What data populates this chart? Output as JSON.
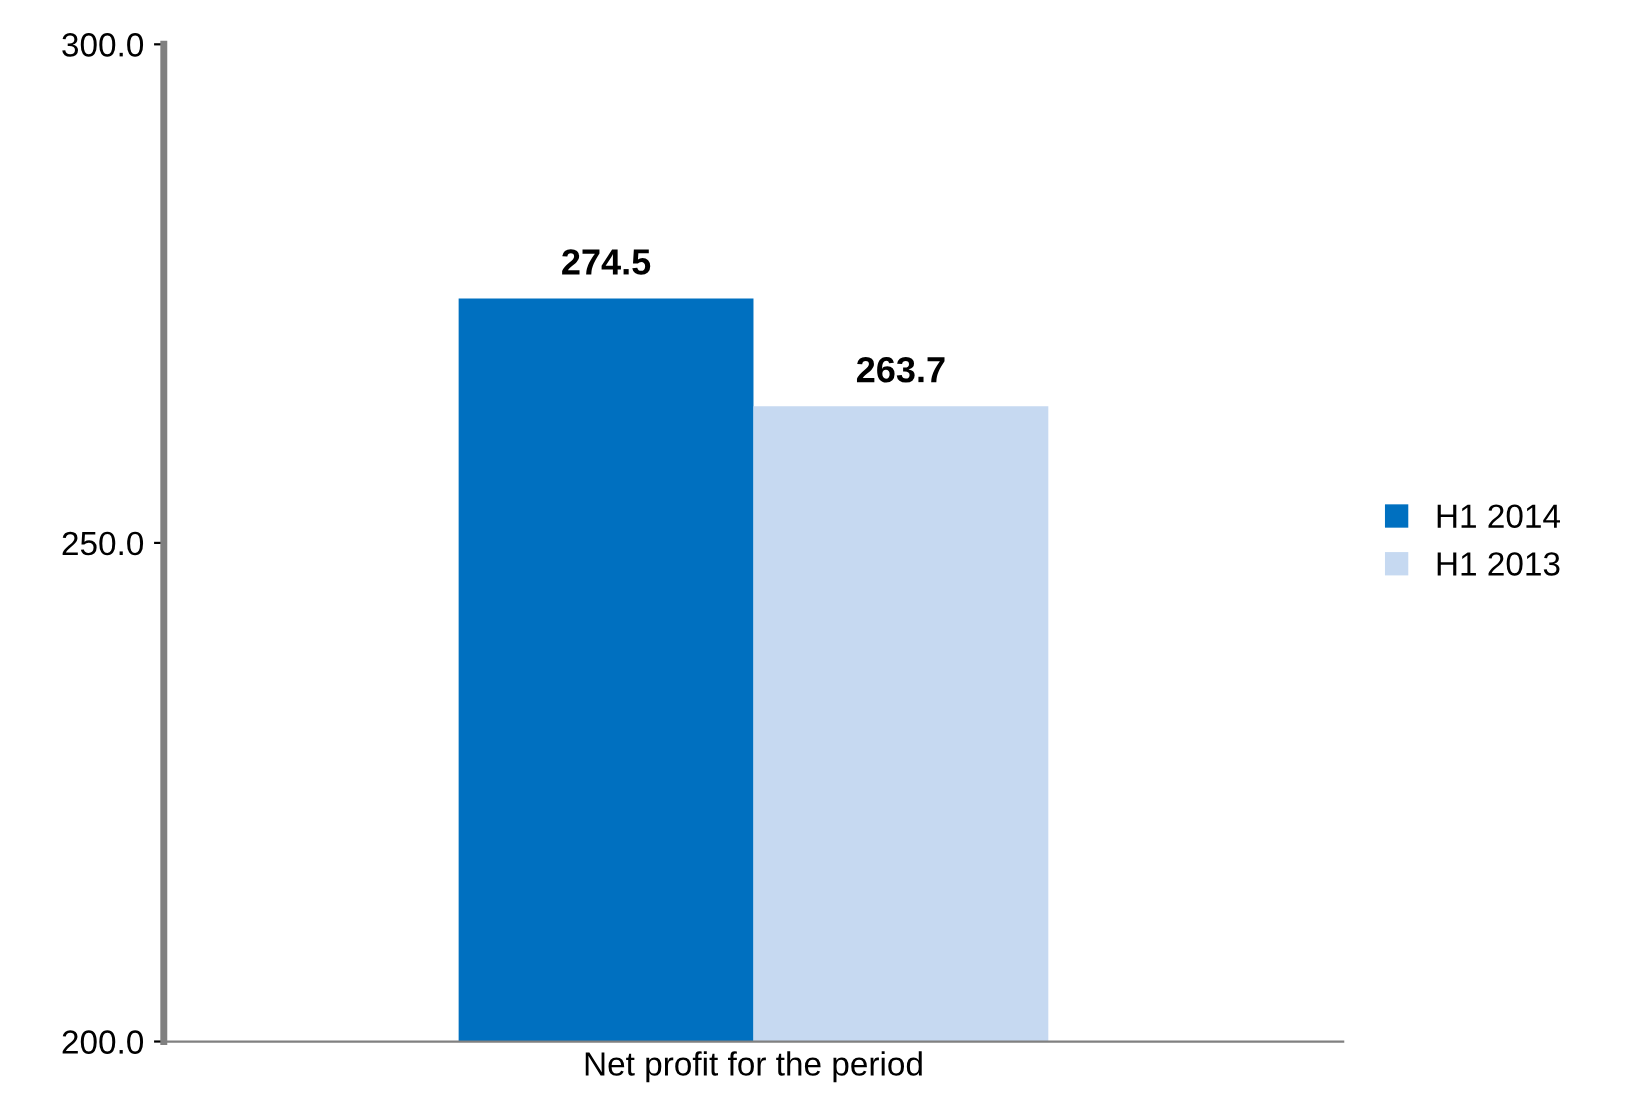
{
  "chart_data": {
    "type": "bar",
    "categories": [
      "Net profit for the period"
    ],
    "series": [
      {
        "name": "H1 2014",
        "color": "#0070c0",
        "values": [
          274.5
        ]
      },
      {
        "name": "H1 2013",
        "color": "#c6d9f1",
        "values": [
          263.7
        ]
      }
    ],
    "ylim": [
      200,
      300
    ],
    "yticks": [
      {
        "value": 200,
        "label": "200.0"
      },
      {
        "value": 250,
        "label": "250.0"
      },
      {
        "value": 300,
        "label": "300.0"
      }
    ],
    "data_labels": true,
    "legend": "right",
    "grid": false
  }
}
